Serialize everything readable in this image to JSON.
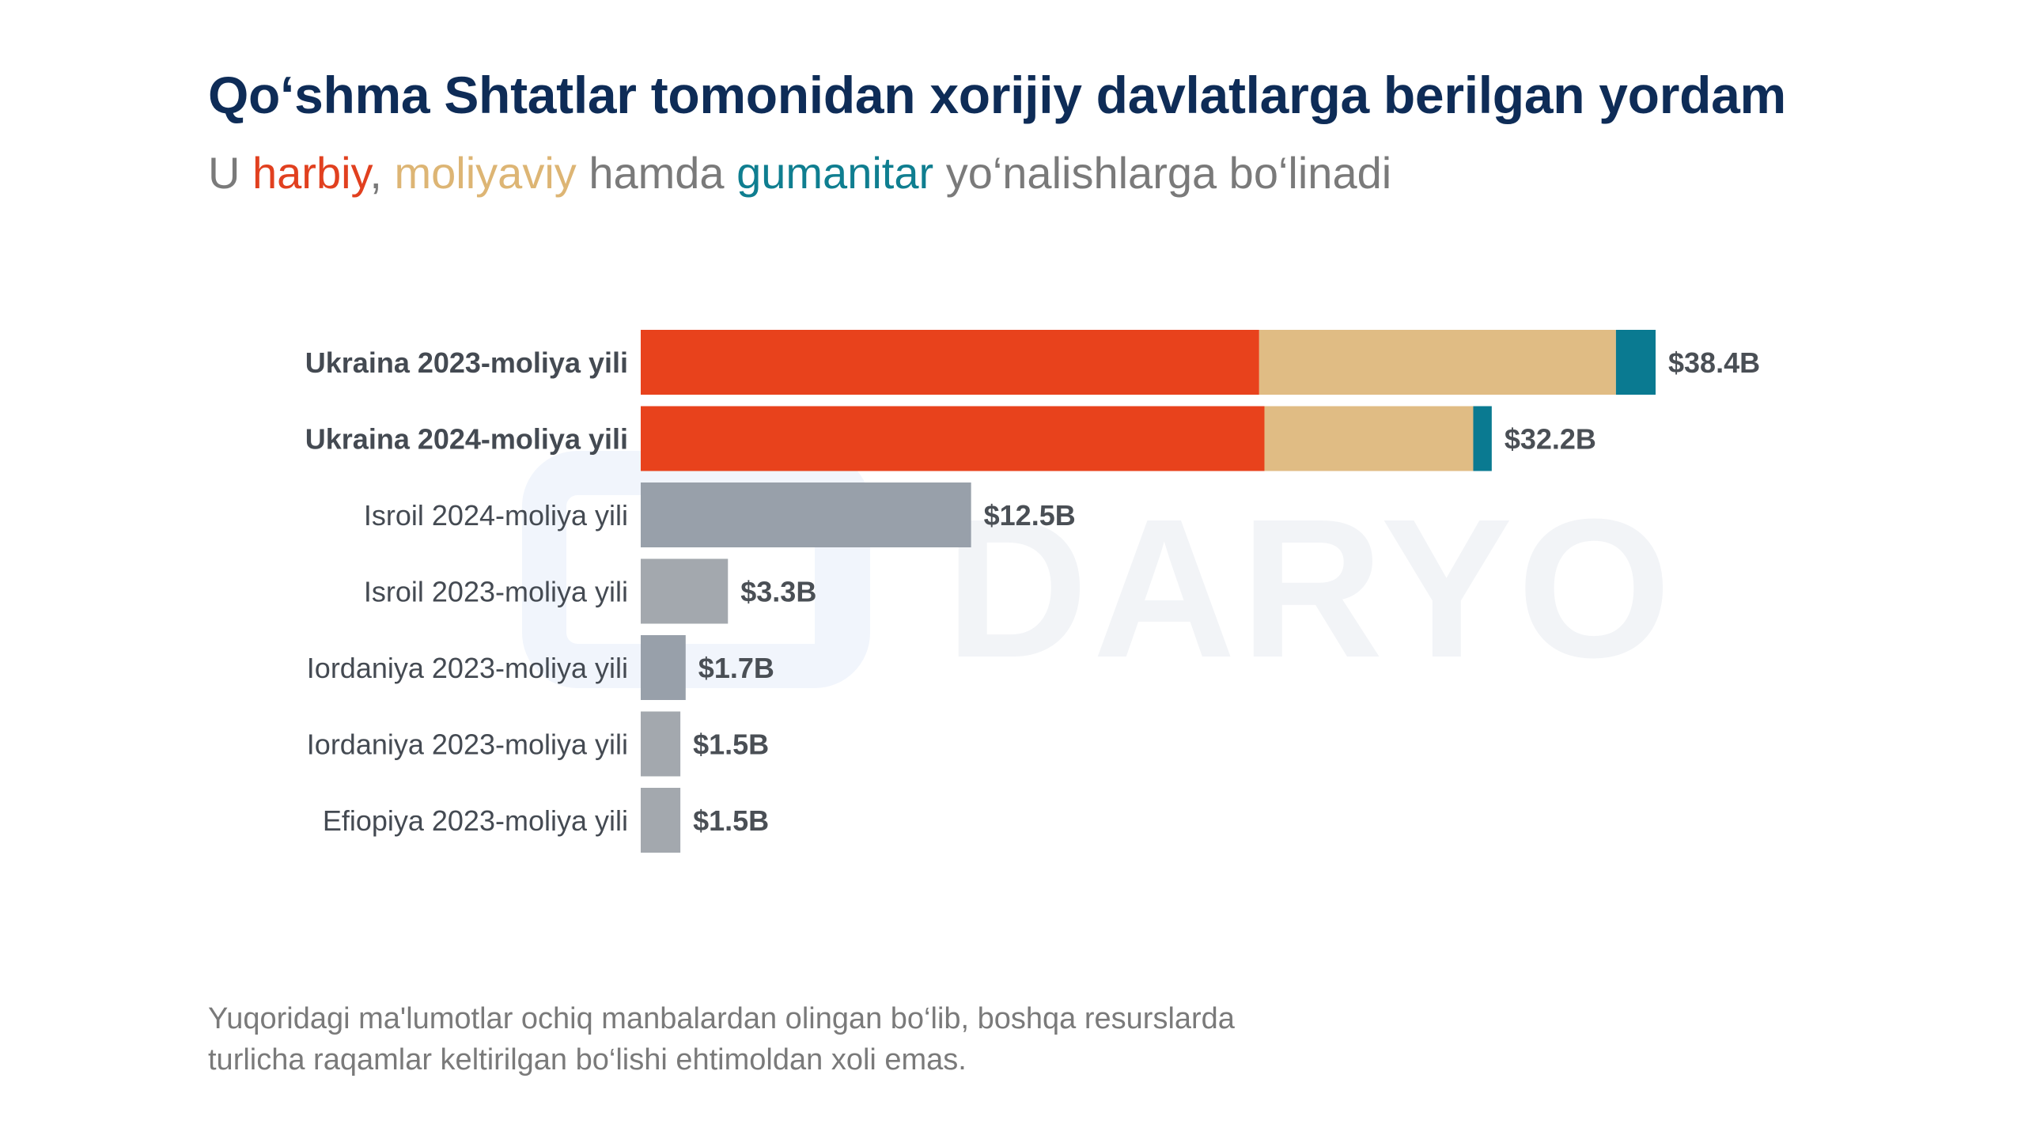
{
  "title": "Qo‘shma Shtatlar tomonidan xorijiy davlatlarga berilgan yordam",
  "subtitle": {
    "p1": "U ",
    "military": "harbiy",
    "p2": ", ",
    "financial": "moliyaviy",
    "p3": " hamda ",
    "humanitarian": "gumanitar",
    "p4": " yo‘nalishlarga bo‘linadi"
  },
  "watermark": "DARYO",
  "footnote": {
    "line1": "Yuqoridagi ma'lumotlar ochiq manbalardan olingan bo‘lib, boshqa resurslarda",
    "line2": "turlicha raqamlar keltirilgan bo‘lishi ehtimoldan xoli emas."
  },
  "colors": {
    "military": "#e8421c",
    "financial": "#e0bc84",
    "humanitarian": "#0a7a91",
    "other": "#a3a8ae",
    "israel": "#98a0aa"
  },
  "chart_data": {
    "type": "bar",
    "orientation": "horizontal",
    "stacked": true,
    "grid": false,
    "legend": "none",
    "xlim": [
      0,
      38.4
    ],
    "categories": [
      "Ukraina 2023-moliya yili",
      "Ukraina 2024-moliya yili",
      "Isroil 2024-moliya yili",
      "Isroil 2023-moliya yili",
      "Iordaniya 2023-moliya yili",
      "Iordaniya 2023-moliya yili",
      "Efiopiya 2023-moliya yili"
    ],
    "bold_categories": [
      true,
      true,
      false,
      false,
      false,
      false,
      false
    ],
    "totals": [
      38.4,
      32.2,
      12.5,
      3.3,
      1.7,
      1.5,
      1.5
    ],
    "value_labels": [
      "$38.4B",
      "$32.2B",
      "$12.5B",
      "$3.3B",
      "$1.7B",
      "$1.5B",
      "$1.5B"
    ],
    "segments": [
      [
        {
          "key": "military",
          "value": 23.4
        },
        {
          "key": "financial",
          "value": 13.5
        },
        {
          "key": "humanitarian",
          "value": 1.5
        }
      ],
      [
        {
          "key": "military",
          "value": 23.6
        },
        {
          "key": "financial",
          "value": 7.9
        },
        {
          "key": "humanitarian",
          "value": 0.7
        }
      ],
      [
        {
          "key": "israel",
          "value": 12.5
        }
      ],
      [
        {
          "key": "other",
          "value": 3.3
        }
      ],
      [
        {
          "key": "israel",
          "value": 1.7
        }
      ],
      [
        {
          "key": "other",
          "value": 1.5
        }
      ],
      [
        {
          "key": "other",
          "value": 1.5
        }
      ]
    ]
  }
}
